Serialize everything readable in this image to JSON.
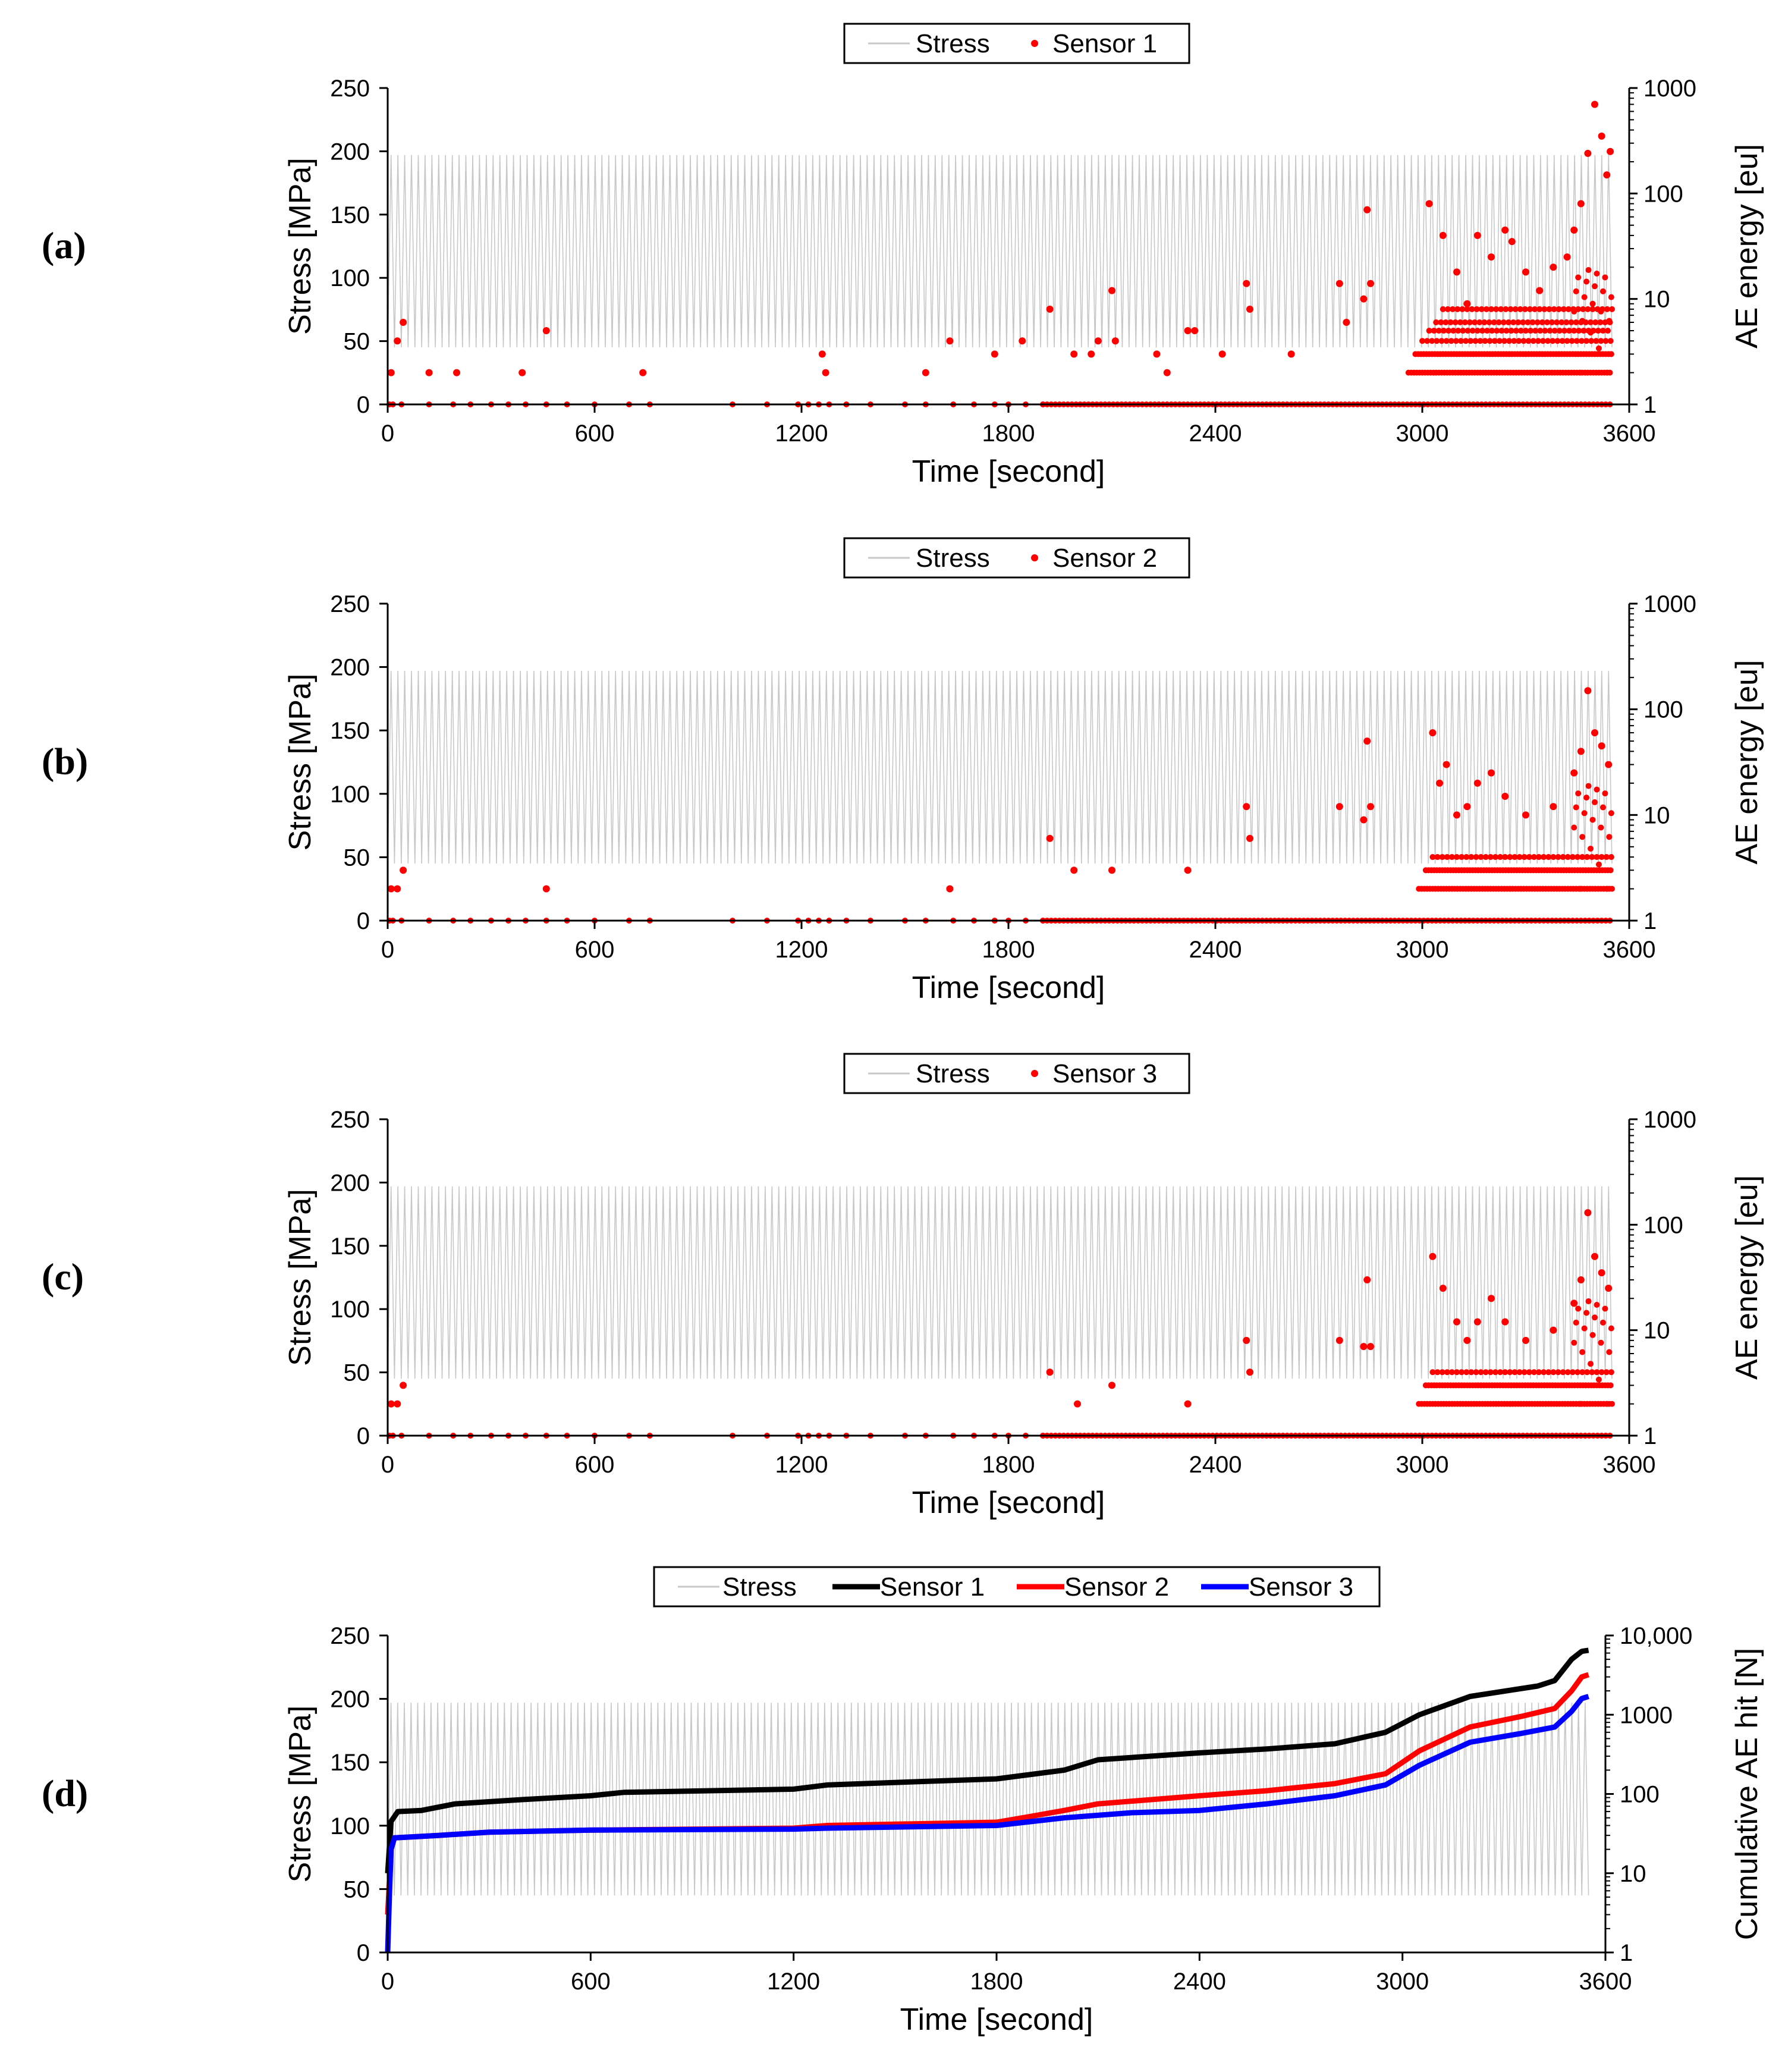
{
  "figure": {
    "colors": {
      "stress": "#c8c8c8",
      "sensor_1_scatter": "#ff0000",
      "sensor_1_cumulative": "#000000",
      "sensor_2": "#ff0000",
      "sensor_3": "#0000ff",
      "axis": "#000000"
    }
  },
  "chart_data": [
    {
      "panel_label": "(a)",
      "type": "scatter",
      "title": "",
      "legend": {
        "position": "top-center",
        "entries": [
          "Stress",
          "Sensor 1"
        ]
      },
      "xlabel": "Time [second]",
      "ylabel_left": "Stress [MPa]",
      "ylabel_right": "AE energy [eu]",
      "xlim": [
        0,
        3600
      ],
      "ylim_left": [
        0,
        250
      ],
      "ylim_right": [
        1,
        1000
      ],
      "right_scale": "log",
      "x_ticks": [
        "0",
        "600",
        "1200",
        "1800",
        "2400",
        "3000",
        "3600"
      ],
      "y_ticks_left": [
        "0",
        "50",
        "100",
        "150",
        "200",
        "250"
      ],
      "y_ticks_right": [
        "1",
        "10",
        "100",
        "1000"
      ],
      "stress": {
        "name": "Stress",
        "min_mpa": 45,
        "max_mpa": 197,
        "cycles_shown": 180,
        "end_time": 3550
      },
      "series": [
        {
          "name": "Sensor 1",
          "points": [
            [
              10,
              2
            ],
            [
              28,
              4
            ],
            [
              45,
              6
            ],
            [
              120,
              2
            ],
            [
              200,
              2
            ],
            [
              390,
              2
            ],
            [
              460,
              5
            ],
            [
              740,
              2
            ],
            [
              1260,
              3
            ],
            [
              1270,
              2
            ],
            [
              1560,
              2
            ],
            [
              1630,
              4
            ],
            [
              1760,
              3
            ],
            [
              1840,
              4
            ],
            [
              1920,
              8
            ],
            [
              1990,
              3
            ],
            [
              2040,
              3
            ],
            [
              2060,
              4
            ],
            [
              2100,
              12
            ],
            [
              2110,
              4
            ],
            [
              2230,
              3
            ],
            [
              2260,
              2
            ],
            [
              2320,
              5
            ],
            [
              2340,
              5
            ],
            [
              2420,
              3
            ],
            [
              2490,
              14
            ],
            [
              2500,
              8
            ],
            [
              2620,
              3
            ],
            [
              2760,
              14
            ],
            [
              2780,
              6
            ],
            [
              2830,
              10
            ],
            [
              2840,
              70
            ],
            [
              2850,
              14
            ],
            [
              3020,
              80
            ],
            [
              3060,
              40
            ],
            [
              3100,
              18
            ],
            [
              3130,
              9
            ],
            [
              3160,
              40
            ],
            [
              3200,
              25
            ],
            [
              3240,
              45
            ],
            [
              3260,
              35
            ],
            [
              3300,
              18
            ],
            [
              3340,
              12
            ],
            [
              3380,
              20
            ],
            [
              3420,
              25
            ],
            [
              3440,
              45
            ],
            [
              3460,
              80
            ],
            [
              3480,
              240
            ],
            [
              3500,
              700
            ],
            [
              3520,
              350
            ],
            [
              3535,
              150
            ],
            [
              3545,
              250
            ]
          ],
          "baseline_band": {
            "x_start": 2960,
            "x_end": 3550,
            "values": [
              2,
              3,
              4,
              5,
              6,
              8
            ]
          }
        }
      ]
    },
    {
      "panel_label": "(b)",
      "type": "scatter",
      "title": "",
      "legend": {
        "position": "top-center",
        "entries": [
          "Stress",
          "Sensor 2"
        ]
      },
      "xlabel": "Time [second]",
      "ylabel_left": "Stress [MPa]",
      "ylabel_right": "AE energy [eu]",
      "xlim": [
        0,
        3600
      ],
      "ylim_left": [
        0,
        250
      ],
      "ylim_right": [
        1,
        1000
      ],
      "right_scale": "log",
      "x_ticks": [
        "0",
        "600",
        "1200",
        "1800",
        "2400",
        "3000",
        "3600"
      ],
      "y_ticks_left": [
        "0",
        "50",
        "100",
        "150",
        "200",
        "250"
      ],
      "y_ticks_right": [
        "1",
        "10",
        "100",
        "1000"
      ],
      "stress": {
        "name": "Stress",
        "min_mpa": 45,
        "max_mpa": 197,
        "cycles_shown": 180,
        "end_time": 3550
      },
      "series": [
        {
          "name": "Sensor 2",
          "points": [
            [
              10,
              2
            ],
            [
              28,
              2
            ],
            [
              45,
              3
            ],
            [
              460,
              2
            ],
            [
              1630,
              2
            ],
            [
              1920,
              6
            ],
            [
              1990,
              3
            ],
            [
              2100,
              3
            ],
            [
              2320,
              3
            ],
            [
              2490,
              12
            ],
            [
              2500,
              6
            ],
            [
              2760,
              12
            ],
            [
              2830,
              9
            ],
            [
              2840,
              50
            ],
            [
              2850,
              12
            ],
            [
              3030,
              60
            ],
            [
              3050,
              20
            ],
            [
              3070,
              30
            ],
            [
              3100,
              10
            ],
            [
              3130,
              12
            ],
            [
              3160,
              20
            ],
            [
              3200,
              25
            ],
            [
              3240,
              15
            ],
            [
              3300,
              10
            ],
            [
              3380,
              12
            ],
            [
              3440,
              25
            ],
            [
              3460,
              40
            ],
            [
              3480,
              150
            ],
            [
              3500,
              60
            ],
            [
              3520,
              45
            ],
            [
              3540,
              30
            ]
          ],
          "baseline_band": {
            "x_start": 2990,
            "x_end": 3550,
            "values": [
              2,
              3,
              4
            ]
          }
        }
      ]
    },
    {
      "panel_label": "(c)",
      "type": "scatter",
      "title": "",
      "legend": {
        "position": "top-center",
        "entries": [
          "Stress",
          "Sensor 3"
        ]
      },
      "xlabel": "Time [second]",
      "ylabel_left": "Stress [MPa]",
      "ylabel_right": "AE energy [eu]",
      "xlim": [
        0,
        3600
      ],
      "ylim_left": [
        0,
        250
      ],
      "ylim_right": [
        1,
        1000
      ],
      "right_scale": "log",
      "x_ticks": [
        "0",
        "600",
        "1200",
        "1800",
        "2400",
        "3000",
        "3600"
      ],
      "y_ticks_left": [
        "0",
        "50",
        "100",
        "150",
        "200",
        "250"
      ],
      "y_ticks_right": [
        "1",
        "10",
        "100",
        "1000"
      ],
      "stress": {
        "name": "Stress",
        "min_mpa": 45,
        "max_mpa": 197,
        "cycles_shown": 180,
        "end_time": 3550
      },
      "series": [
        {
          "name": "Sensor 3",
          "points": [
            [
              10,
              2
            ],
            [
              28,
              2
            ],
            [
              45,
              3
            ],
            [
              1920,
              4
            ],
            [
              2000,
              2
            ],
            [
              2100,
              3
            ],
            [
              2320,
              2
            ],
            [
              2490,
              8
            ],
            [
              2500,
              4
            ],
            [
              2760,
              8
            ],
            [
              2830,
              7
            ],
            [
              2840,
              30
            ],
            [
              2850,
              7
            ],
            [
              3030,
              50
            ],
            [
              3060,
              25
            ],
            [
              3100,
              12
            ],
            [
              3130,
              8
            ],
            [
              3160,
              12
            ],
            [
              3200,
              20
            ],
            [
              3240,
              12
            ],
            [
              3300,
              8
            ],
            [
              3380,
              10
            ],
            [
              3440,
              18
            ],
            [
              3460,
              30
            ],
            [
              3480,
              130
            ],
            [
              3500,
              50
            ],
            [
              3520,
              35
            ],
            [
              3540,
              25
            ]
          ],
          "baseline_band": {
            "x_start": 2990,
            "x_end": 3550,
            "values": [
              2,
              3,
              4
            ]
          }
        }
      ]
    },
    {
      "panel_label": "(d)",
      "type": "line",
      "title": "",
      "legend": {
        "position": "top-center",
        "entries": [
          "Stress",
          "Sensor 1",
          "Sensor 2",
          "Sensor 3"
        ]
      },
      "xlabel": "Time [second]",
      "ylabel_left": "Stress [MPa]",
      "ylabel_right": "Cumulative AE hit [N]",
      "xlim": [
        0,
        3600
      ],
      "ylim_left": [
        0,
        250
      ],
      "ylim_right": [
        1,
        10000
      ],
      "right_scale": "log",
      "x_ticks": [
        "0",
        "600",
        "1200",
        "1800",
        "2400",
        "3000",
        "3600"
      ],
      "y_ticks_left": [
        "0",
        "50",
        "100",
        "150",
        "200",
        "250"
      ],
      "y_ticks_right": [
        "1",
        "10",
        "100",
        "1000",
        "10,000"
      ],
      "stress": {
        "name": "Stress",
        "min_mpa": 45,
        "max_mpa": 197,
        "cycles_shown": 180,
        "end_time": 3550
      },
      "series": [
        {
          "name": "Sensor 1",
          "points": [
            [
              0,
              10
            ],
            [
              10,
              45
            ],
            [
              30,
              60
            ],
            [
              100,
              62
            ],
            [
              200,
              75
            ],
            [
              400,
              85
            ],
            [
              600,
              95
            ],
            [
              700,
              105
            ],
            [
              1200,
              115
            ],
            [
              1300,
              130
            ],
            [
              1800,
              155
            ],
            [
              2000,
              200
            ],
            [
              2100,
              270
            ],
            [
              2400,
              330
            ],
            [
              2600,
              370
            ],
            [
              2800,
              430
            ],
            [
              2950,
              600
            ],
            [
              3050,
              1000
            ],
            [
              3200,
              1700
            ],
            [
              3400,
              2300
            ],
            [
              3450,
              2700
            ],
            [
              3500,
              5000
            ],
            [
              3530,
              6300
            ],
            [
              3550,
              6500
            ]
          ]
        },
        {
          "name": "Sensor 2",
          "points": [
            [
              0,
              3
            ],
            [
              10,
              20
            ],
            [
              20,
              28
            ],
            [
              150,
              30
            ],
            [
              300,
              33
            ],
            [
              600,
              35
            ],
            [
              1200,
              37
            ],
            [
              1300,
              40
            ],
            [
              1800,
              44
            ],
            [
              1900,
              52
            ],
            [
              2000,
              62
            ],
            [
              2100,
              75
            ],
            [
              2400,
              95
            ],
            [
              2600,
              110
            ],
            [
              2800,
              135
            ],
            [
              2950,
              180
            ],
            [
              3050,
              350
            ],
            [
              3200,
              700
            ],
            [
              3350,
              950
            ],
            [
              3450,
              1200
            ],
            [
              3500,
              2000
            ],
            [
              3530,
              3000
            ],
            [
              3550,
              3200
            ]
          ]
        },
        {
          "name": "Sensor 3",
          "points": [
            [
              0,
              1
            ],
            [
              5,
              5
            ],
            [
              10,
              20
            ],
            [
              20,
              28
            ],
            [
              150,
              30
            ],
            [
              300,
              33
            ],
            [
              600,
              35
            ],
            [
              1200,
              36
            ],
            [
              1300,
              37
            ],
            [
              1800,
              40
            ],
            [
              2000,
              50
            ],
            [
              2200,
              58
            ],
            [
              2400,
              62
            ],
            [
              2600,
              75
            ],
            [
              2800,
              95
            ],
            [
              2950,
              130
            ],
            [
              3050,
              230
            ],
            [
              3200,
              450
            ],
            [
              3350,
              580
            ],
            [
              3450,
              700
            ],
            [
              3500,
              1100
            ],
            [
              3530,
              1600
            ],
            [
              3550,
              1700
            ]
          ]
        }
      ]
    }
  ]
}
